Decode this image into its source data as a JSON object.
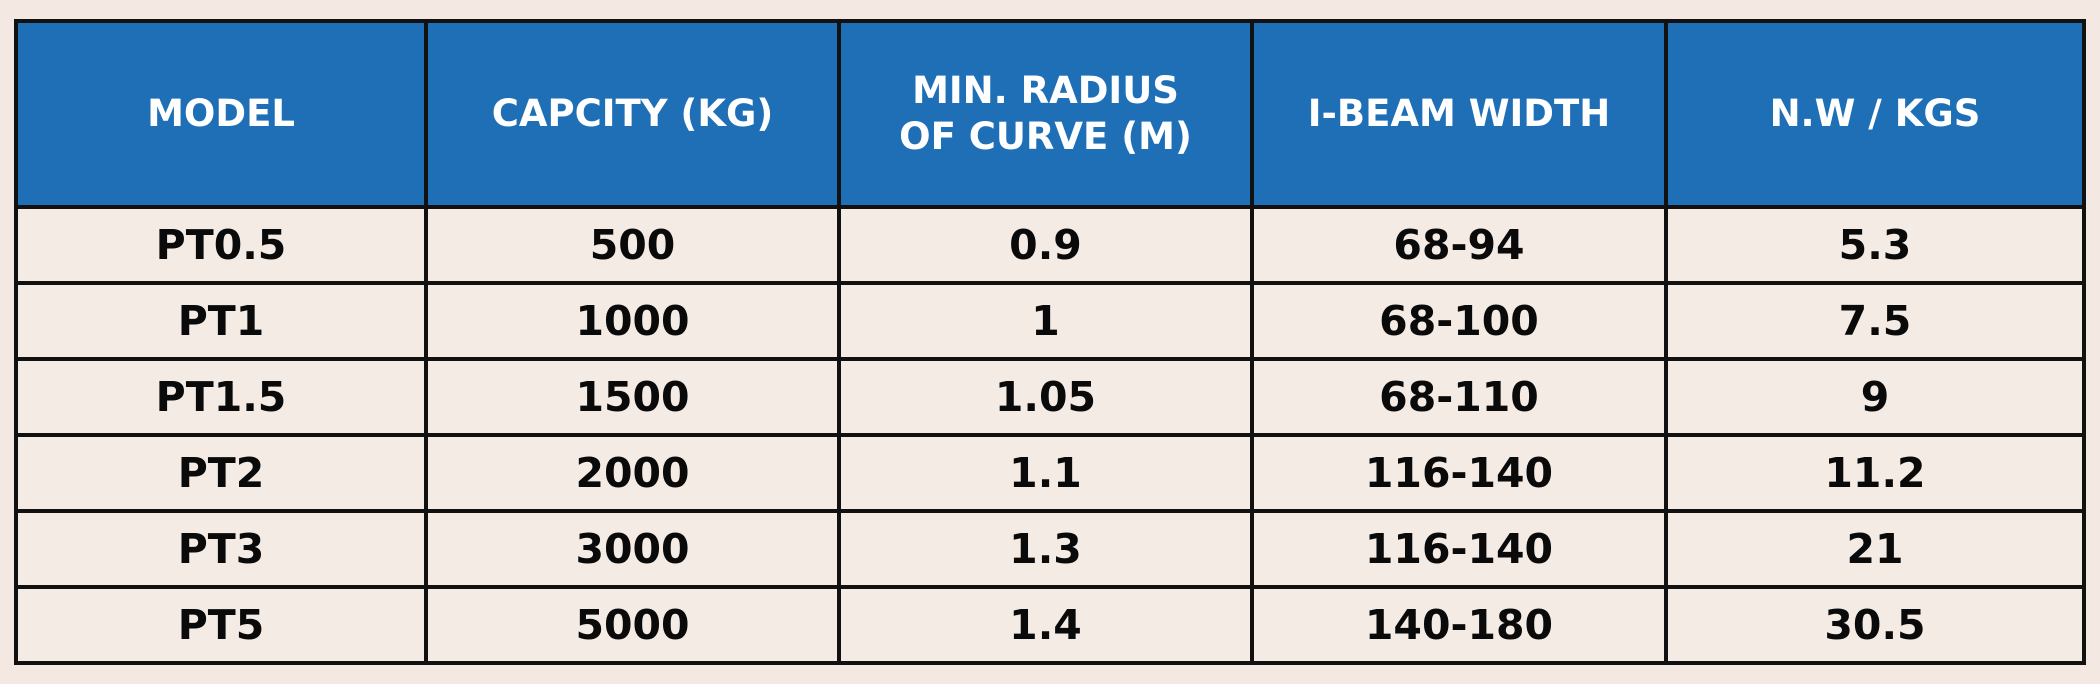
{
  "table": {
    "headers": {
      "model": "MODEL",
      "capacity": "CAPCITY (KG)",
      "radius": "MIN. RADIUS OF CURVE (M)",
      "beam": "I-BEAM WIDTH",
      "weight": "N.W / KGS"
    },
    "rows": [
      {
        "model": "PT0.5",
        "capacity": "500",
        "radius": "0.9",
        "beam": "68-94",
        "weight": "5.3"
      },
      {
        "model": "PT1",
        "capacity": "1000",
        "radius": "1",
        "beam": "68-100",
        "weight": "7.5"
      },
      {
        "model": "PT1.5",
        "capacity": "1500",
        "radius": "1.05",
        "beam": "68-110",
        "weight": "9"
      },
      {
        "model": "PT2",
        "capacity": "2000",
        "radius": "1.1",
        "beam": "116-140",
        "weight": "11.2"
      },
      {
        "model": "PT3",
        "capacity": "3000",
        "radius": "1.3",
        "beam": "116-140",
        "weight": "21"
      },
      {
        "model": "PT5",
        "capacity": "5000",
        "radius": "1.4",
        "beam": "140-180",
        "weight": "30.5"
      }
    ],
    "colors": {
      "header_bg": "#1f6fb7",
      "header_text": "#ffffff",
      "body_bg": "#f4ebe5",
      "border": "#111111",
      "page_bg": "#f3e9e2"
    }
  }
}
